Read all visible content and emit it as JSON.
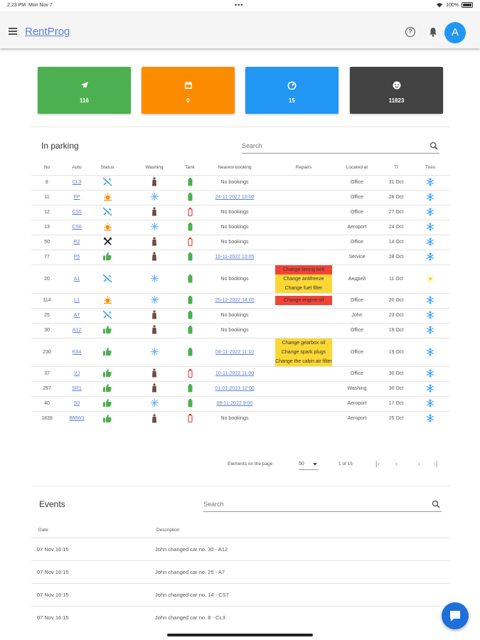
{
  "status_bar": {
    "time": "2:23 PM",
    "date": "Mon Nov 7",
    "dots": "•••",
    "battery": "100%"
  },
  "header": {
    "app_name": "RentProg",
    "help_label": "?",
    "avatar_letter": "A",
    "avatar_color": "#2196f3"
  },
  "stat_cards": [
    {
      "icon": "airplane-icon",
      "value": "116",
      "color": "#4caf50"
    },
    {
      "icon": "calendar-icon",
      "value": "0",
      "color": "#fb8c00"
    },
    {
      "icon": "speedometer-icon",
      "value": "15",
      "color": "#2196f3"
    },
    {
      "icon": "smiley-icon",
      "value": "11823",
      "color": "#424242"
    }
  ],
  "parking": {
    "title": "In parking",
    "search_placeholder": "Search",
    "columns": [
      "No",
      "Auto",
      "Status",
      "Washing",
      "Tank",
      "Nearest booking",
      "Repairs",
      "Located at",
      "TI",
      "Tires"
    ],
    "rows": [
      {
        "no": "8",
        "auto": "CL3",
        "status": "not-available-icon",
        "washing": "dirty-icon",
        "tank": "full",
        "booking": "No bookings",
        "booking_link": false,
        "repairs": [],
        "location": "Office",
        "ti": "31 Oct",
        "tires": "winter"
      },
      {
        "no": "11",
        "auto": "FP",
        "status": "sun-icon",
        "washing": "clean-icon",
        "tank": "full",
        "booking": "24-11-2022 10:00",
        "booking_link": true,
        "repairs": [],
        "location": "Office",
        "ti": "28 Oct",
        "tires": "winter"
      },
      {
        "no": "12",
        "auto": "CS5",
        "status": "not-available-icon",
        "washing": "dirty-icon",
        "tank": "empty",
        "booking": "No bookings",
        "booking_link": false,
        "repairs": [],
        "location": "Office",
        "ti": "27 Oct",
        "tires": "winter"
      },
      {
        "no": "13",
        "auto": "CS6",
        "status": "sun-icon",
        "washing": "clean-icon",
        "tank": "full",
        "booking": "No bookings",
        "booking_link": false,
        "repairs": [],
        "location": "Aeroport",
        "ti": "24 Oct",
        "tires": "winter"
      },
      {
        "no": "50",
        "auto": "R2",
        "status": "tools-icon",
        "washing": "dirty-icon",
        "tank": "empty",
        "booking": "No bookings",
        "booking_link": false,
        "repairs": [],
        "location": "Office",
        "ti": "14 Oct",
        "tires": "winter"
      },
      {
        "no": "77",
        "auto": "P5",
        "status": "thumbs-up-icon",
        "washing": "dirty-icon",
        "tank": "full",
        "booking": "10-11-2022 10:05",
        "booking_link": true,
        "repairs": [],
        "location": "Service",
        "ti": "28 Oct",
        "tires": "winter"
      },
      {
        "no": "20",
        "auto": "A1",
        "status": "not-available-icon",
        "washing": "clean-icon",
        "tank": "full",
        "booking": "No bookings",
        "booking_link": false,
        "repairs": [
          {
            "text": "Change timing belt",
            "color": "red"
          },
          {
            "text": "Change antifreeze",
            "color": "yellow"
          },
          {
            "text": "Change fuel filter",
            "color": "yellow"
          }
        ],
        "location": "Андрей",
        "ti": "11 Oct",
        "tires": "summer"
      },
      {
        "no": "114",
        "auto": "L1",
        "status": "sun-icon",
        "washing": "clean-icon",
        "tank": "full",
        "booking": "25-12-2022 14:00",
        "booking_link": true,
        "repairs": [
          {
            "text": "Change engine oil",
            "color": "red"
          }
        ],
        "location": "Office",
        "ti": "20 Oct",
        "tires": "winter"
      },
      {
        "no": "25",
        "auto": "A7",
        "status": "not-available-icon",
        "washing": "dirty-icon",
        "tank": "full",
        "booking": "No bookings",
        "booking_link": false,
        "repairs": [],
        "location": "John",
        "ti": "23 Oct",
        "tires": "winter"
      },
      {
        "no": "30",
        "auto": "A12",
        "status": "thumbs-up-icon",
        "washing": "dirty-icon",
        "tank": "full",
        "booking": "No bookings",
        "booking_link": false,
        "repairs": [],
        "location": "Office",
        "ti": "19 Oct",
        "tires": "winter"
      },
      {
        "no": "230",
        "auto": "K84",
        "status": "thumbs-up-icon",
        "washing": "clean-icon",
        "tank": "full",
        "booking": "08-11-2022 11:10",
        "booking_link": true,
        "repairs": [
          {
            "text": "Change gearbox oil",
            "color": "yellow"
          },
          {
            "text": "Change spark plugs",
            "color": "yellow"
          },
          {
            "text": "Change the cabin air filter",
            "color": "yellow"
          }
        ],
        "location": "Office",
        "ti": "19 Oct",
        "tires": "winter"
      },
      {
        "no": "37",
        "auto": "VJ",
        "status": "thumbs-up-icon",
        "washing": "dirty-icon",
        "tank": "empty",
        "booking": "10-11-2022 11:00",
        "booking_link": true,
        "repairs": [],
        "location": "Office",
        "ti": "30 Oct",
        "tires": "winter"
      },
      {
        "no": "297",
        "auto": "SR1",
        "status": "thumbs-up-icon",
        "washing": "dirty-icon",
        "tank": "full",
        "booking": "01-01-2023 12:00",
        "booking_link": true,
        "repairs": [],
        "location": "Washing",
        "ti": "30 Oct",
        "tires": "winter"
      },
      {
        "no": "40",
        "auto": "S0",
        "status": "thumbs-up-icon",
        "washing": "clean-icon",
        "tank": "full",
        "booking": "08-11-2022 9:00",
        "booking_link": true,
        "repairs": [],
        "location": "Aeroport",
        "ti": "17 Oct",
        "tires": "winter"
      },
      {
        "no": "1839",
        "auto": "BMW3",
        "status": "thumbs-up-icon",
        "washing": "dirty-icon",
        "tank": "empty",
        "booking": "No bookings",
        "booking_link": false,
        "repairs": [],
        "location": "Aeroport",
        "ti": "25 Oct",
        "tires": "winter"
      }
    ],
    "pagination": {
      "label": "Elements on the page",
      "per_page": "50",
      "range": "1 of 15"
    }
  },
  "events": {
    "title": "Events",
    "search_placeholder": "Search",
    "columns": [
      "Date",
      "Description"
    ],
    "rows": [
      {
        "date": "07 Nov 16:15",
        "description": "John changed car no. 30 - A12"
      },
      {
        "date": "07 Nov 16:15",
        "description": "John changed car no. 25 - A7"
      },
      {
        "date": "07 Nov 16:15",
        "description": "John changed car no. 14 - CS7"
      },
      {
        "date": "07 Nov 16:15",
        "description": "John changed car no. 8 - CL3"
      }
    ]
  },
  "colors": {
    "link": "#5c7fd6",
    "green": "#4caf50",
    "orange": "#fb8c00",
    "blue": "#2196f3",
    "dark": "#424242",
    "red": "#f44336",
    "yellow": "#fdd835"
  }
}
